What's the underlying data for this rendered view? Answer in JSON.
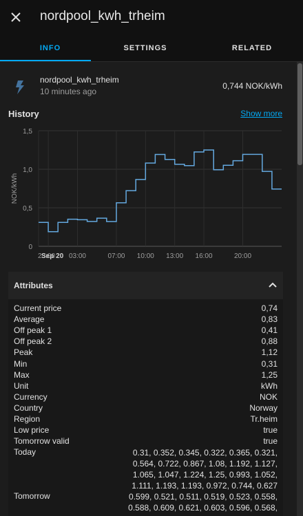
{
  "dialog": {
    "title": "nordpool_kwh_trheim"
  },
  "tabs": [
    {
      "label": "INFO",
      "active": true
    },
    {
      "label": "SETTINGS",
      "active": false
    },
    {
      "label": "RELATED",
      "active": false
    }
  ],
  "entity": {
    "icon": "lightning-bolt-icon",
    "name": "nordpool_kwh_trheim",
    "last_changed": "10 minutes ago",
    "state": "0,744 NOK/kWh"
  },
  "history": {
    "title": "History",
    "show_more": "Show more"
  },
  "chart_data": {
    "type": "line",
    "step": true,
    "ylabel": "NOK/kWh",
    "ylim": [
      0,
      1.5
    ],
    "y_ticks": [
      "0",
      "0,5",
      "1,0",
      "1,5"
    ],
    "x_ticks": [
      "23:00",
      "Sep 20",
      "03:00",
      "07:00",
      "10:00",
      "13:00",
      "16:00",
      "20:00"
    ],
    "grid": true,
    "color": "#64a9e0",
    "series": [
      {
        "values": [
          0.31,
          0.19,
          0.31,
          0.352,
          0.345,
          0.322,
          0.365,
          0.321,
          0.564,
          0.722,
          0.867,
          1.08,
          1.192,
          1.127,
          1.065,
          1.047,
          1.224,
          1.25,
          0.993,
          1.052,
          1.111,
          1.193,
          1.193,
          0.972,
          0.744
        ]
      }
    ]
  },
  "attributes": {
    "title": "Attributes",
    "rows": [
      {
        "key": "Current price",
        "value": "0,74"
      },
      {
        "key": "Average",
        "value": "0,83"
      },
      {
        "key": "Off peak 1",
        "value": "0,41"
      },
      {
        "key": "Off peak 2",
        "value": "0,88"
      },
      {
        "key": "Peak",
        "value": "1,12"
      },
      {
        "key": "Min",
        "value": "0,31"
      },
      {
        "key": "Max",
        "value": "1,25"
      },
      {
        "key": "Unit",
        "value": "kWh"
      },
      {
        "key": "Currency",
        "value": "NOK"
      },
      {
        "key": "Country",
        "value": "Norway"
      },
      {
        "key": "Region",
        "value": "Tr.heim"
      },
      {
        "key": "Low price",
        "value": "true"
      },
      {
        "key": "Tomorrow valid",
        "value": "true"
      }
    ],
    "today_label": "Today",
    "today": [
      "0.31, 0.352, 0.345, 0.322, 0.365, 0.321,",
      "0.564, 0.722, 0.867, 1.08, 1.192, 1.127,",
      "1.065, 1.047, 1.224, 1.25, 0.993, 1.052,",
      "1.111, 1.193, 1.193, 0.972, 0.744, 0.627"
    ],
    "tomorrow_label": "Tomorrow",
    "tomorrow": [
      "0.599, 0.521, 0.511, 0.519, 0.523, 0.558,",
      "0.588, 0.609, 0.621, 0.603, 0.596, 0.568,"
    ]
  }
}
